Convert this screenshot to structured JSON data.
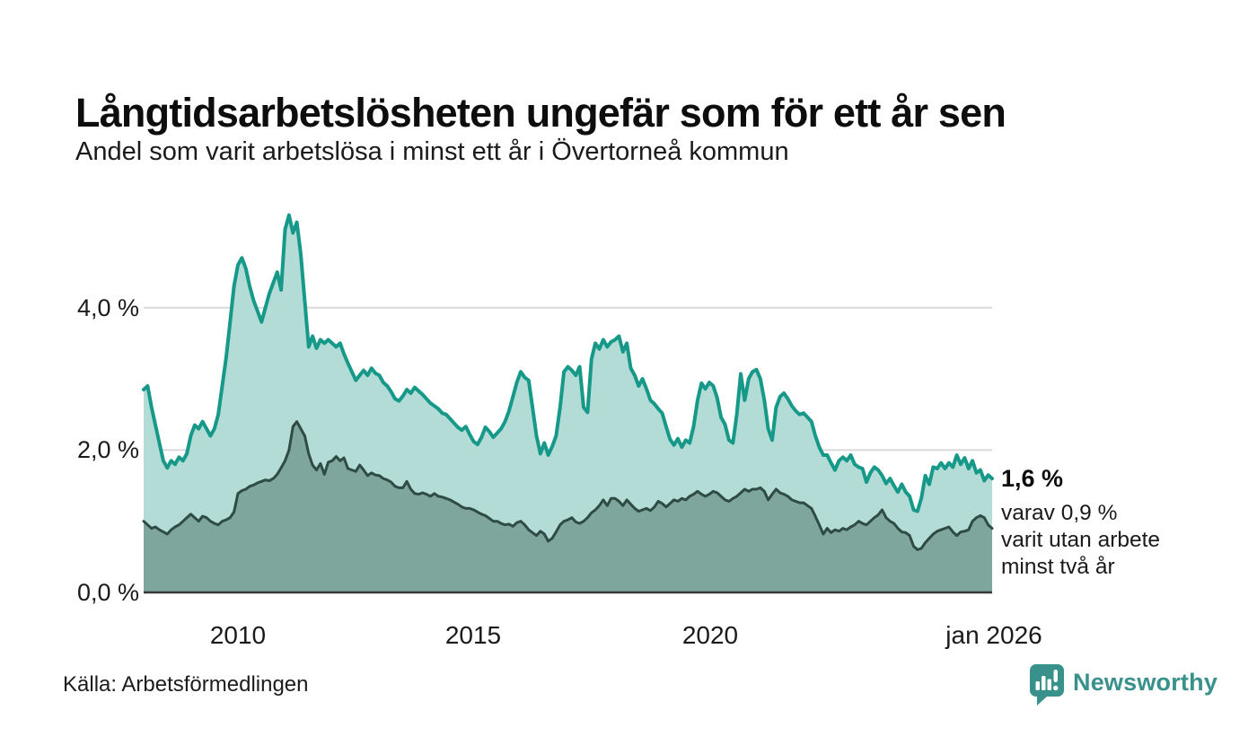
{
  "chart_data": {
    "type": "area",
    "title": "Långtidsarbetslösheten ungefär som för ett år sen",
    "subtitle": "Andel som varit arbetslösa i minst ett år i Övertorneå kommun",
    "unit": "%",
    "x_range": {
      "start": "2008-01",
      "end": "2026-01",
      "interval": "month"
    },
    "xlim": [
      2008,
      2026
    ],
    "ylim": [
      0,
      5.5
    ],
    "grid": "horizontal",
    "legend": "none",
    "y_ticks": [
      {
        "value": 0,
        "label": "0,0 %"
      },
      {
        "value": 2,
        "label": "2,0 %"
      },
      {
        "value": 4,
        "label": "4,0 %"
      }
    ],
    "x_ticks": [
      {
        "value": 2010,
        "label": "2010"
      },
      {
        "value": 2015,
        "label": "2015"
      },
      {
        "value": 2020,
        "label": "2020"
      },
      {
        "value": 2026,
        "label": "jan 2026"
      }
    ],
    "series": [
      {
        "name": "Andel arbetslösa minst ett år",
        "stroke": "#17998a",
        "fill": "#b4dcd6",
        "last_value": 1.6,
        "values": [
          2.85,
          2.9,
          2.6,
          2.35,
          2.1,
          1.85,
          1.75,
          1.85,
          1.8,
          1.9,
          1.85,
          1.95,
          2.2,
          2.35,
          2.3,
          2.4,
          2.3,
          2.2,
          2.3,
          2.5,
          2.9,
          3.3,
          3.8,
          4.3,
          4.6,
          4.7,
          4.55,
          4.3,
          4.1,
          3.95,
          3.8,
          4.0,
          4.2,
          4.35,
          4.5,
          4.25,
          5.1,
          5.3,
          5.05,
          5.2,
          4.75,
          4.1,
          3.45,
          3.6,
          3.43,
          3.55,
          3.5,
          3.55,
          3.5,
          3.45,
          3.5,
          3.35,
          3.22,
          3.1,
          2.98,
          3.05,
          3.12,
          3.05,
          3.15,
          3.08,
          3.05,
          2.95,
          2.9,
          2.82,
          2.72,
          2.69,
          2.76,
          2.85,
          2.8,
          2.88,
          2.83,
          2.78,
          2.72,
          2.66,
          2.62,
          2.58,
          2.52,
          2.5,
          2.44,
          2.38,
          2.32,
          2.28,
          2.33,
          2.22,
          2.12,
          2.08,
          2.18,
          2.32,
          2.26,
          2.18,
          2.24,
          2.3,
          2.4,
          2.55,
          2.75,
          2.95,
          3.1,
          3.02,
          2.98,
          2.6,
          2.2,
          1.95,
          2.1,
          1.93,
          2.05,
          2.2,
          2.6,
          3.1,
          3.17,
          3.12,
          3.05,
          3.17,
          2.6,
          2.53,
          3.28,
          3.5,
          3.42,
          3.55,
          3.45,
          3.52,
          3.55,
          3.6,
          3.38,
          3.5,
          3.15,
          3.05,
          2.9,
          3.0,
          2.86,
          2.7,
          2.65,
          2.58,
          2.52,
          2.33,
          2.15,
          2.07,
          2.16,
          2.04,
          2.14,
          2.1,
          2.33,
          2.7,
          2.94,
          2.86,
          2.95,
          2.9,
          2.73,
          2.46,
          2.36,
          2.14,
          2.1,
          2.5,
          3.07,
          2.7,
          3.0,
          3.1,
          3.13,
          3.0,
          2.7,
          2.3,
          2.14,
          2.6,
          2.75,
          2.8,
          2.72,
          2.62,
          2.55,
          2.5,
          2.52,
          2.46,
          2.4,
          2.2,
          2.04,
          1.93,
          1.93,
          1.82,
          1.72,
          1.85,
          1.9,
          1.85,
          1.93,
          1.8,
          1.76,
          1.74,
          1.55,
          1.68,
          1.76,
          1.72,
          1.64,
          1.53,
          1.6,
          1.5,
          1.41,
          1.52,
          1.41,
          1.35,
          1.16,
          1.14,
          1.33,
          1.64,
          1.52,
          1.76,
          1.74,
          1.82,
          1.74,
          1.82,
          1.76,
          1.93,
          1.8,
          1.89,
          1.74,
          1.85,
          1.68,
          1.72,
          1.57,
          1.65,
          1.6
        ]
      },
      {
        "name": "Varav utan arbete minst två år",
        "stroke": "#2e4b44",
        "fill": "#7ea69d",
        "last_value": 0.9,
        "values": [
          1.0,
          0.95,
          0.9,
          0.92,
          0.88,
          0.85,
          0.82,
          0.88,
          0.92,
          0.95,
          1.0,
          1.05,
          1.1,
          1.05,
          1.0,
          1.07,
          1.05,
          1.0,
          0.97,
          0.95,
          1.0,
          1.02,
          1.05,
          1.13,
          1.39,
          1.43,
          1.45,
          1.49,
          1.51,
          1.54,
          1.56,
          1.58,
          1.57,
          1.6,
          1.66,
          1.75,
          1.85,
          2.0,
          2.33,
          2.4,
          2.3,
          2.2,
          1.95,
          1.79,
          1.72,
          1.81,
          1.66,
          1.83,
          1.85,
          1.91,
          1.85,
          1.89,
          1.74,
          1.72,
          1.7,
          1.79,
          1.72,
          1.64,
          1.68,
          1.65,
          1.64,
          1.6,
          1.58,
          1.55,
          1.49,
          1.47,
          1.47,
          1.56,
          1.45,
          1.39,
          1.38,
          1.4,
          1.38,
          1.35,
          1.39,
          1.35,
          1.34,
          1.32,
          1.3,
          1.27,
          1.24,
          1.2,
          1.18,
          1.18,
          1.16,
          1.13,
          1.1,
          1.08,
          1.04,
          1.0,
          1.0,
          0.97,
          0.95,
          0.96,
          0.93,
          0.98,
          1.0,
          0.95,
          0.88,
          0.84,
          0.8,
          0.86,
          0.82,
          0.72,
          0.76,
          0.85,
          0.95,
          1.0,
          1.02,
          1.05,
          0.99,
          0.97,
          1.0,
          1.05,
          1.12,
          1.16,
          1.22,
          1.3,
          1.22,
          1.32,
          1.32,
          1.28,
          1.22,
          1.3,
          1.24,
          1.18,
          1.14,
          1.16,
          1.18,
          1.15,
          1.2,
          1.28,
          1.25,
          1.2,
          1.25,
          1.3,
          1.28,
          1.32,
          1.3,
          1.35,
          1.38,
          1.42,
          1.38,
          1.35,
          1.38,
          1.42,
          1.4,
          1.35,
          1.3,
          1.28,
          1.32,
          1.35,
          1.4,
          1.45,
          1.42,
          1.45,
          1.45,
          1.47,
          1.42,
          1.3,
          1.38,
          1.45,
          1.4,
          1.38,
          1.35,
          1.3,
          1.28,
          1.26,
          1.26,
          1.22,
          1.18,
          1.07,
          0.95,
          0.82,
          0.9,
          0.84,
          0.88,
          0.86,
          0.9,
          0.88,
          0.92,
          0.95,
          1.0,
          0.97,
          0.95,
          1.0,
          1.05,
          1.09,
          1.16,
          1.05,
          1.0,
          0.97,
          0.9,
          0.85,
          0.84,
          0.8,
          0.65,
          0.6,
          0.62,
          0.7,
          0.76,
          0.82,
          0.86,
          0.88,
          0.9,
          0.92,
          0.85,
          0.8,
          0.85,
          0.86,
          0.88,
          1.0,
          1.05,
          1.08,
          1.05,
          0.95,
          0.9
        ]
      }
    ],
    "annotation": {
      "value_label": "1,6 %",
      "note_line1": "varav 0,9 %",
      "note_line2": "varit utan arbete",
      "note_line3": "minst två år"
    }
  },
  "footer": {
    "source": "Källa: Arbetsförmedlingen",
    "brand": "Newsworthy"
  },
  "theme": {
    "accent_teal": "#17998a",
    "light_fill": "#b4dcd6",
    "dark_fill": "#7ea69d",
    "dark_line": "#2e4b44",
    "gridline": "#d9d9d9",
    "axis_line": "#383838"
  }
}
